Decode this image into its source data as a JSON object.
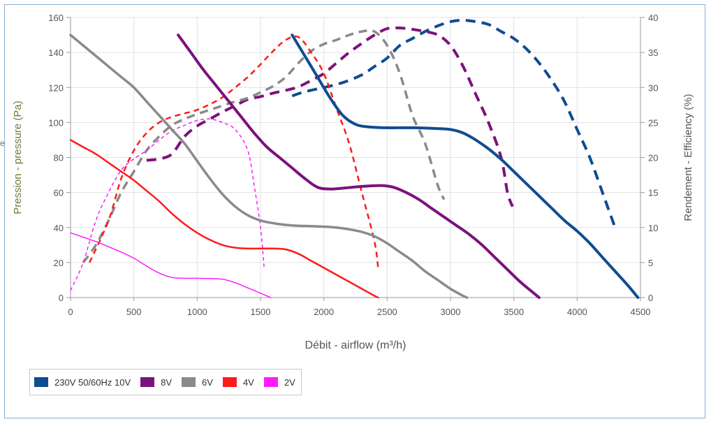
{
  "chart_data": {
    "type": "line",
    "xlabel": "Débit - airflow (m³/h)",
    "ylabel_left": "Pression - pressure (Pa)",
    "ylabel_right": "Rendement - Efficiency (%)",
    "xlim": [
      0,
      4500
    ],
    "ylim_left": [
      0,
      160
    ],
    "ylim_right": [
      0,
      40
    ],
    "x_ticks": [
      0,
      500,
      1000,
      1500,
      2000,
      2500,
      3000,
      3500,
      4000,
      4500
    ],
    "y_left_ticks": [
      0,
      20,
      40,
      60,
      80,
      100,
      120,
      140,
      160
    ],
    "y_right_ticks": [
      0,
      5,
      10,
      15,
      20,
      25,
      30,
      35,
      40
    ],
    "grid": true,
    "legend_position": "bottom-left",
    "series": [
      {
        "name": "230V 50/60Hz 10V",
        "color": "#0f4c92",
        "pressure": [
          [
            1750,
            150
          ],
          [
            1850,
            138
          ],
          [
            1950,
            126
          ],
          [
            2050,
            114
          ],
          [
            2150,
            104
          ],
          [
            2250,
            99
          ],
          [
            2350,
            97.5
          ],
          [
            2500,
            97
          ],
          [
            2700,
            97
          ],
          [
            2900,
            96.5
          ],
          [
            3000,
            96
          ],
          [
            3100,
            94
          ],
          [
            3200,
            90
          ],
          [
            3300,
            85
          ],
          [
            3400,
            79
          ],
          [
            3500,
            72
          ],
          [
            3600,
            65
          ],
          [
            3700,
            58
          ],
          [
            3800,
            51
          ],
          [
            3900,
            44
          ],
          [
            4000,
            38
          ],
          [
            4100,
            31
          ],
          [
            4200,
            23
          ],
          [
            4300,
            15
          ],
          [
            4400,
            7
          ],
          [
            4480,
            0
          ]
        ],
        "efficiency": [
          [
            1750,
            28.8
          ],
          [
            1850,
            29.4
          ],
          [
            2000,
            30
          ],
          [
            2150,
            30.7
          ],
          [
            2300,
            31.8
          ],
          [
            2400,
            33
          ],
          [
            2500,
            34.2
          ],
          [
            2600,
            36
          ],
          [
            2700,
            37
          ],
          [
            2800,
            38
          ],
          [
            2900,
            38.8
          ],
          [
            3000,
            39.4
          ],
          [
            3100,
            39.6
          ],
          [
            3200,
            39.4
          ],
          [
            3300,
            39
          ],
          [
            3400,
            38
          ],
          [
            3500,
            37
          ],
          [
            3600,
            35.5
          ],
          [
            3700,
            33.5
          ],
          [
            3800,
            31
          ],
          [
            3900,
            28
          ],
          [
            4000,
            24
          ],
          [
            4100,
            20
          ],
          [
            4200,
            15
          ],
          [
            4300,
            10
          ]
        ]
      },
      {
        "name": "8V",
        "color": "#7b127c",
        "pressure": [
          [
            850,
            150
          ],
          [
            950,
            140
          ],
          [
            1050,
            130
          ],
          [
            1150,
            121
          ],
          [
            1250,
            112
          ],
          [
            1350,
            103
          ],
          [
            1450,
            94
          ],
          [
            1550,
            86
          ],
          [
            1650,
            80
          ],
          [
            1750,
            74
          ],
          [
            1850,
            68
          ],
          [
            1950,
            63
          ],
          [
            2050,
            62
          ],
          [
            2150,
            62.5
          ],
          [
            2300,
            63.5
          ],
          [
            2450,
            64
          ],
          [
            2550,
            63
          ],
          [
            2650,
            60
          ],
          [
            2750,
            56
          ],
          [
            2850,
            51
          ],
          [
            2950,
            46
          ],
          [
            3050,
            41
          ],
          [
            3150,
            36
          ],
          [
            3250,
            30
          ],
          [
            3350,
            23
          ],
          [
            3450,
            16
          ],
          [
            3550,
            9
          ],
          [
            3650,
            3
          ],
          [
            3700,
            0
          ]
        ],
        "efficiency": [
          [
            600,
            19.6
          ],
          [
            700,
            19.8
          ],
          [
            800,
            20.5
          ],
          [
            900,
            23
          ],
          [
            1000,
            24.5
          ],
          [
            1100,
            25.5
          ],
          [
            1200,
            26.5
          ],
          [
            1300,
            27.4
          ],
          [
            1400,
            28.3
          ],
          [
            1500,
            28.7
          ],
          [
            1600,
            29.2
          ],
          [
            1700,
            29.6
          ],
          [
            1800,
            30.1
          ],
          [
            1900,
            31
          ],
          [
            2000,
            32
          ],
          [
            2100,
            33.5
          ],
          [
            2200,
            35
          ],
          [
            2300,
            36.3
          ],
          [
            2400,
            37.5
          ],
          [
            2500,
            38.4
          ],
          [
            2600,
            38.5
          ],
          [
            2700,
            38.3
          ],
          [
            2800,
            38
          ],
          [
            2900,
            37.5
          ],
          [
            3000,
            36
          ],
          [
            3100,
            33
          ],
          [
            3200,
            29
          ],
          [
            3300,
            25
          ],
          [
            3400,
            20
          ],
          [
            3450,
            15
          ],
          [
            3490,
            13
          ]
        ]
      },
      {
        "name": "6V",
        "color": "#8a8a8a",
        "pressure": [
          [
            0,
            150
          ],
          [
            100,
            144
          ],
          [
            200,
            138
          ],
          [
            300,
            132
          ],
          [
            400,
            126
          ],
          [
            500,
            120
          ],
          [
            600,
            112
          ],
          [
            700,
            104
          ],
          [
            800,
            96
          ],
          [
            900,
            88
          ],
          [
            1000,
            78
          ],
          [
            1100,
            68
          ],
          [
            1200,
            59
          ],
          [
            1300,
            52
          ],
          [
            1400,
            47
          ],
          [
            1500,
            44
          ],
          [
            1600,
            42.5
          ],
          [
            1700,
            41.5
          ],
          [
            1800,
            41
          ],
          [
            1900,
            40.8
          ],
          [
            2000,
            40.5
          ],
          [
            2100,
            40
          ],
          [
            2200,
            39
          ],
          [
            2300,
            37.5
          ],
          [
            2400,
            35
          ],
          [
            2500,
            31
          ],
          [
            2600,
            26
          ],
          [
            2700,
            21
          ],
          [
            2800,
            15
          ],
          [
            2900,
            10
          ],
          [
            3000,
            5
          ],
          [
            3100,
            1
          ],
          [
            3130,
            0
          ]
        ],
        "efficiency": [
          [
            100,
            5
          ],
          [
            200,
            7.5
          ],
          [
            300,
            11
          ],
          [
            400,
            15
          ],
          [
            500,
            18
          ],
          [
            600,
            21
          ],
          [
            700,
            23
          ],
          [
            800,
            24.6
          ],
          [
            900,
            25.5
          ],
          [
            1000,
            26.2
          ],
          [
            1100,
            26.8
          ],
          [
            1200,
            27.4
          ],
          [
            1300,
            28
          ],
          [
            1400,
            28.5
          ],
          [
            1500,
            29.3
          ],
          [
            1600,
            30.2
          ],
          [
            1700,
            31.5
          ],
          [
            1800,
            33.5
          ],
          [
            1900,
            35.2
          ],
          [
            2000,
            36.2
          ],
          [
            2100,
            36.8
          ],
          [
            2200,
            37.5
          ],
          [
            2300,
            38
          ],
          [
            2400,
            38
          ],
          [
            2500,
            36
          ],
          [
            2600,
            32
          ],
          [
            2700,
            26
          ],
          [
            2800,
            22
          ],
          [
            2900,
            16
          ],
          [
            2950,
            14
          ]
        ]
      },
      {
        "name": "4V",
        "color": "#ff1a1a",
        "pressure": [
          [
            0,
            90
          ],
          [
            100,
            86
          ],
          [
            200,
            82
          ],
          [
            300,
            77
          ],
          [
            400,
            72
          ],
          [
            500,
            67
          ],
          [
            600,
            61
          ],
          [
            700,
            55
          ],
          [
            800,
            48
          ],
          [
            900,
            42
          ],
          [
            1000,
            37
          ],
          [
            1100,
            33
          ],
          [
            1200,
            30
          ],
          [
            1300,
            28.5
          ],
          [
            1400,
            28
          ],
          [
            1500,
            28
          ],
          [
            1600,
            28
          ],
          [
            1700,
            27.5
          ],
          [
            1800,
            25
          ],
          [
            1900,
            21
          ],
          [
            2000,
            17
          ],
          [
            2100,
            13
          ],
          [
            2200,
            9
          ],
          [
            2300,
            5
          ],
          [
            2400,
            1
          ],
          [
            2430,
            0
          ]
        ],
        "efficiency": [
          [
            150,
            5
          ],
          [
            300,
            11
          ],
          [
            400,
            17
          ],
          [
            500,
            21
          ],
          [
            600,
            23.5
          ],
          [
            700,
            25
          ],
          [
            800,
            25.8
          ],
          [
            900,
            26.3
          ],
          [
            1000,
            26.8
          ],
          [
            1100,
            27.6
          ],
          [
            1200,
            28.6
          ],
          [
            1300,
            30
          ],
          [
            1400,
            31.5
          ],
          [
            1500,
            33.3
          ],
          [
            1600,
            35.2
          ],
          [
            1700,
            36.8
          ],
          [
            1800,
            37.2
          ],
          [
            1900,
            35
          ],
          [
            2000,
            32
          ],
          [
            2100,
            27
          ],
          [
            2200,
            22
          ],
          [
            2300,
            15
          ],
          [
            2400,
            8
          ],
          [
            2430,
            4
          ]
        ]
      },
      {
        "name": "2V",
        "color": "#ff1aff",
        "pressure": [
          [
            0,
            37
          ],
          [
            100,
            34.5
          ],
          [
            200,
            32
          ],
          [
            300,
            29
          ],
          [
            400,
            26
          ],
          [
            500,
            22.5
          ],
          [
            600,
            18
          ],
          [
            700,
            14
          ],
          [
            800,
            11.5
          ],
          [
            900,
            11
          ],
          [
            1000,
            11
          ],
          [
            1100,
            10.8
          ],
          [
            1200,
            10.5
          ],
          [
            1300,
            8.5
          ],
          [
            1400,
            5.5
          ],
          [
            1500,
            2.5
          ],
          [
            1580,
            0
          ]
        ],
        "efficiency": [
          [
            0,
            1
          ],
          [
            100,
            5
          ],
          [
            200,
            11
          ],
          [
            300,
            15
          ],
          [
            400,
            18.2
          ],
          [
            500,
            19.8
          ],
          [
            600,
            21
          ],
          [
            700,
            22.5
          ],
          [
            800,
            23.8
          ],
          [
            900,
            24.6
          ],
          [
            1000,
            25.3
          ],
          [
            1100,
            25.5
          ],
          [
            1200,
            25
          ],
          [
            1300,
            24
          ],
          [
            1400,
            21
          ],
          [
            1450,
            16
          ],
          [
            1500,
            10
          ],
          [
            1530,
            4
          ]
        ]
      }
    ]
  },
  "page": {
    "clipped_letter": "e"
  }
}
